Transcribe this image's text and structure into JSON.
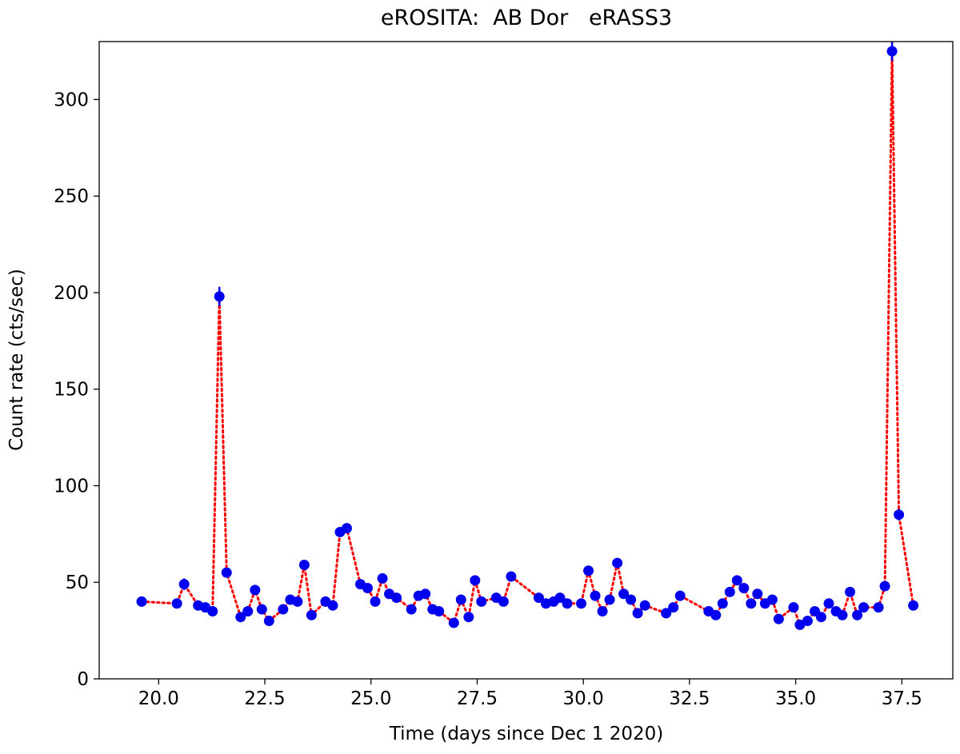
{
  "chart_data": {
    "type": "scatter",
    "title": "eROSITA:  AB Dor   eRASS3",
    "xlabel": "Time (days since Dec 1 2020)",
    "ylabel": "Count rate (cts/sec)",
    "xlim": [
      18.6,
      38.7
    ],
    "ylim": [
      0,
      330
    ],
    "xticks": [
      20.0,
      22.5,
      25.0,
      27.5,
      30.0,
      32.5,
      35.0,
      37.5
    ],
    "xtick_labels": [
      "20.0",
      "22.5",
      "25.0",
      "27.5",
      "30.0",
      "32.5",
      "35.0",
      "37.5"
    ],
    "yticks": [
      0,
      50,
      100,
      150,
      200,
      250,
      300
    ],
    "ytick_labels": [
      "0",
      "50",
      "100",
      "150",
      "200",
      "250",
      "300"
    ],
    "grid": false,
    "colors": {
      "points": "#0000ee",
      "line": "#ff0000"
    },
    "series": [
      {
        "style": "points with error bars joined by a dotted line",
        "x": [
          19.6,
          20.43,
          20.6,
          20.93,
          21.1,
          21.27,
          21.43,
          21.6,
          21.93,
          22.1,
          22.27,
          22.43,
          22.6,
          22.93,
          23.1,
          23.27,
          23.43,
          23.6,
          23.93,
          24.1,
          24.27,
          24.43,
          24.75,
          24.92,
          25.1,
          25.27,
          25.43,
          25.6,
          25.95,
          26.12,
          26.28,
          26.45,
          26.6,
          26.95,
          27.12,
          27.3,
          27.45,
          27.6,
          27.95,
          28.12,
          28.3,
          28.95,
          29.12,
          29.3,
          29.45,
          29.62,
          29.95,
          30.12,
          30.28,
          30.45,
          30.62,
          30.8,
          30.95,
          31.12,
          31.28,
          31.45,
          31.95,
          32.12,
          32.28,
          32.95,
          33.12,
          33.28,
          33.45,
          33.62,
          33.78,
          33.95,
          34.1,
          34.28,
          34.45,
          34.6,
          34.95,
          35.1,
          35.28,
          35.45,
          35.6,
          35.78,
          35.95,
          36.1,
          36.28,
          36.45,
          36.6,
          36.95,
          37.1,
          37.27,
          37.43,
          37.77
        ],
        "y": [
          40,
          39,
          49,
          38,
          37,
          35,
          198,
          55,
          32,
          35,
          46,
          36,
          30,
          36,
          41,
          40,
          59,
          33,
          40,
          38,
          76,
          78,
          49,
          47,
          40,
          52,
          44,
          42,
          36,
          43,
          44,
          36,
          35,
          29,
          41,
          32,
          51,
          40,
          42,
          40,
          53,
          42,
          39,
          40,
          42,
          39,
          39,
          56,
          43,
          35,
          41,
          60,
          44,
          41,
          34,
          38,
          34,
          37,
          43,
          35,
          33,
          39,
          45,
          51,
          47,
          39,
          44,
          39,
          41,
          31,
          37,
          28,
          30,
          35,
          32,
          39,
          35,
          33,
          45,
          33,
          37,
          37,
          48,
          325,
          85,
          38
        ],
        "yerr": [
          1.5,
          1.5,
          3,
          1.5,
          1.5,
          1.5,
          5,
          2,
          1.5,
          1.5,
          2,
          1.5,
          1.5,
          1.5,
          1.5,
          1.5,
          2,
          1.5,
          1.5,
          1.5,
          2,
          2,
          1.5,
          1.5,
          1.5,
          2,
          1.5,
          1.5,
          1.5,
          1.5,
          1.5,
          1.5,
          1.5,
          1.5,
          1.5,
          1.5,
          2,
          1.5,
          1.5,
          1.5,
          2,
          1.5,
          1.5,
          1.5,
          1.5,
          1.5,
          1.5,
          2,
          1.5,
          1.5,
          1.5,
          2,
          1.5,
          1.5,
          1.5,
          1.5,
          1.5,
          1.5,
          1.5,
          1.5,
          1.5,
          1.5,
          1.5,
          2,
          1.5,
          1.5,
          1.5,
          1.5,
          1.5,
          1.5,
          1.5,
          1.5,
          1.5,
          1.5,
          1.5,
          1.5,
          1.5,
          1.5,
          2,
          1.5,
          1.5,
          1.5,
          2,
          5,
          3,
          2
        ]
      }
    ]
  }
}
